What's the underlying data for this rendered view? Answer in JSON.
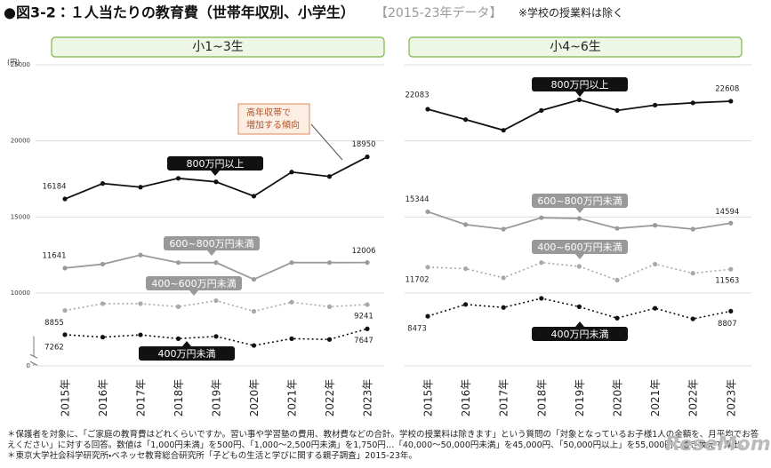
{
  "header": {
    "title": "●図3-2：１人当たりの教育費（世帯年収別、小学生）",
    "period": "【2015-23年データ】",
    "note": "※学校の授業料は除く"
  },
  "chart_data": [
    {
      "type": "line",
      "title": "小1~3生",
      "y_unit": "(円)",
      "show_tick_labels": true,
      "categories": [
        "2015年",
        "2016年",
        "2017年",
        "2018年",
        "2019年",
        "2020年",
        "2021年",
        "2022年",
        "2023年"
      ],
      "ylim": [
        0,
        25000
      ],
      "yticks": [
        0,
        10000,
        15000,
        20000,
        25000
      ],
      "axis_break": [
        0,
        6000
      ],
      "grid": true,
      "annotation": [
        "高年収帯で",
        "増加する傾向"
      ],
      "series": [
        {
          "name": "800万円以上",
          "color": "#111111",
          "dash": "solid",
          "values": [
            16184,
            17200,
            16960,
            17540,
            17310,
            16370,
            17950,
            17660,
            18950
          ]
        },
        {
          "name": "600~800万円未満",
          "color": "#9a9a9a",
          "dash": "solid",
          "values": [
            11641,
            11900,
            12500,
            12000,
            12000,
            10900,
            12000,
            12000,
            12006
          ]
        },
        {
          "name": "400~600万円未満",
          "color": "#a8a8a8",
          "dash": "dotted",
          "values": [
            8855,
            9300,
            9300,
            9100,
            9500,
            8800,
            9400,
            9100,
            9241
          ]
        },
        {
          "name": "400万円未満",
          "color": "#111111",
          "dash": "dotted",
          "values": [
            7262,
            7100,
            7250,
            7000,
            7150,
            6550,
            7000,
            6950,
            7647
          ]
        }
      ]
    },
    {
      "type": "line",
      "title": "小4~6生",
      "show_tick_labels": false,
      "categories": [
        "2015年",
        "2016年",
        "2017年",
        "2018年",
        "2019年",
        "2020年",
        "2021年",
        "2022年",
        "2023年"
      ],
      "ylim": [
        6000,
        25000
      ],
      "yticks": [
        10000,
        15000,
        20000,
        25000
      ],
      "grid": true,
      "series": [
        {
          "name": "800万円以上",
          "color": "#111111",
          "dash": "solid",
          "values": [
            22083,
            21400,
            20700,
            22000,
            22700,
            22000,
            22350,
            22500,
            22608
          ]
        },
        {
          "name": "600~800万円未満",
          "color": "#9a9a9a",
          "dash": "solid",
          "values": [
            15344,
            14500,
            14200,
            14950,
            14900,
            14250,
            14450,
            14200,
            14594
          ]
        },
        {
          "name": "400~600万円未満",
          "color": "#a8a8a8",
          "dash": "dotted",
          "values": [
            11702,
            11600,
            11000,
            12000,
            11750,
            10850,
            11900,
            11300,
            11563
          ]
        },
        {
          "name": "400万円未満",
          "color": "#111111",
          "dash": "dotted",
          "values": [
            8473,
            9250,
            9050,
            9650,
            9100,
            8350,
            9000,
            8300,
            8807
          ]
        }
      ]
    }
  ],
  "footnotes": [
    "＊保護者を対象に、「ご家庭の教育費はどれくらいですか。習い事や学習塾の費用、教材費などの合計。学校の授業料は除きます」という質問の「対象となっているお子様1人の金額を、月平均でお答えください」に対する回答。数値は「1,000円未満」を500円、「1,000～2,500円未満」を1,750円…「40,000～50,000円未満」を45,000円、「50,000円以上」を55,000円に置き換えて算出。",
    "＊東京大学社会科学研究所・ベネッセ教育総合研究所「子どもの生活と学びに関する親子調査」2015-23年。"
  ],
  "brand": "ReseMom"
}
